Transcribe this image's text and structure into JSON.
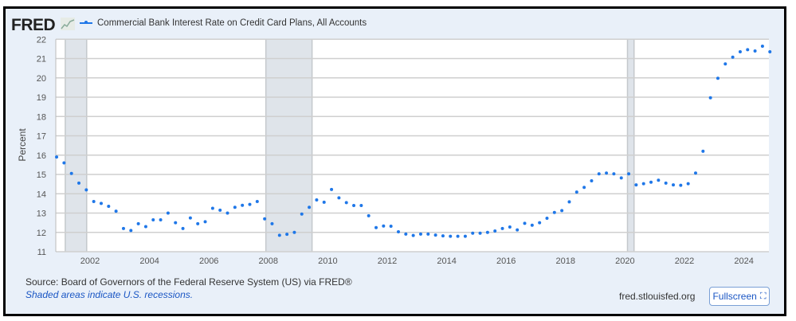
{
  "header": {
    "logo": "FRED",
    "legend_label": "Commercial Bank Interest Rate on Credit Card Plans, All Accounts"
  },
  "footer": {
    "source": "Source: Board of Governors of the Federal Reserve System (US) via FRED®",
    "recession_note": "Shaded areas indicate U.S. recessions.",
    "site": "fred.stlouisfed.org",
    "fullscreen_label": "Fullscreen",
    "fullscreen_icon": "expand-icon"
  },
  "colors": {
    "series": "#1f77e8",
    "recession": "#dfe4ea",
    "background": "#e9f0f9"
  },
  "chart_data": {
    "type": "scatter",
    "title": "Commercial Bank Interest Rate on Credit Card Plans, All Accounts",
    "xlabel": "",
    "ylabel": "Percent",
    "ylim": [
      11,
      22
    ],
    "xlim": [
      2000.833,
      2024.833
    ],
    "yticks": [
      "11",
      "12",
      "13",
      "14",
      "15",
      "16",
      "17",
      "18",
      "19",
      "20",
      "21",
      "22"
    ],
    "xticks": [
      "2002",
      "2004",
      "2006",
      "2008",
      "2010",
      "2012",
      "2014",
      "2016",
      "2018",
      "2020",
      "2022",
      "2024"
    ],
    "grid": true,
    "frequency": "quarterly",
    "x": [
      "2000-11",
      "2001-02",
      "2001-05",
      "2001-08",
      "2001-11",
      "2002-02",
      "2002-05",
      "2002-08",
      "2002-11",
      "2003-02",
      "2003-05",
      "2003-08",
      "2003-11",
      "2004-02",
      "2004-05",
      "2004-08",
      "2004-11",
      "2005-02",
      "2005-05",
      "2005-08",
      "2005-11",
      "2006-02",
      "2006-05",
      "2006-08",
      "2006-11",
      "2007-02",
      "2007-05",
      "2007-08",
      "2007-11",
      "2008-02",
      "2008-05",
      "2008-08",
      "2008-11",
      "2009-02",
      "2009-05",
      "2009-08",
      "2009-11",
      "2010-02",
      "2010-05",
      "2010-08",
      "2010-11",
      "2011-02",
      "2011-05",
      "2011-08",
      "2011-11",
      "2012-02",
      "2012-05",
      "2012-08",
      "2012-11",
      "2013-02",
      "2013-05",
      "2013-08",
      "2013-11",
      "2014-02",
      "2014-05",
      "2014-08",
      "2014-11",
      "2015-02",
      "2015-05",
      "2015-08",
      "2015-11",
      "2016-02",
      "2016-05",
      "2016-08",
      "2016-11",
      "2017-02",
      "2017-05",
      "2017-08",
      "2017-11",
      "2018-02",
      "2018-05",
      "2018-08",
      "2018-11",
      "2019-02",
      "2019-05",
      "2019-08",
      "2019-11",
      "2020-02",
      "2020-05",
      "2020-08",
      "2020-11",
      "2021-02",
      "2021-05",
      "2021-08",
      "2021-11",
      "2022-02",
      "2022-05",
      "2022-08",
      "2022-11",
      "2023-02",
      "2023-05",
      "2023-08",
      "2023-11",
      "2024-02",
      "2024-05",
      "2024-08",
      "2024-11"
    ],
    "series": [
      {
        "name": "Commercial Bank Interest Rate on Credit Card Plans, All Accounts",
        "values": [
          15.9,
          15.6,
          15.05,
          14.55,
          14.2,
          13.6,
          13.5,
          13.35,
          13.1,
          12.2,
          12.1,
          12.45,
          12.3,
          12.65,
          12.65,
          13.0,
          12.5,
          12.2,
          12.75,
          12.45,
          12.55,
          13.25,
          13.15,
          13.0,
          13.3,
          13.4,
          13.45,
          13.6,
          12.7,
          12.45,
          11.85,
          11.9,
          12.0,
          12.95,
          13.3,
          13.68,
          13.56,
          14.22,
          13.79,
          13.54,
          13.39,
          13.39,
          12.86,
          12.25,
          12.33,
          12.32,
          12.03,
          11.91,
          11.84,
          11.91,
          11.91,
          11.86,
          11.82,
          11.8,
          11.8,
          11.8,
          11.96,
          11.96,
          12.0,
          12.07,
          12.2,
          12.28,
          12.13,
          12.47,
          12.37,
          12.5,
          12.73,
          13.03,
          13.13,
          13.58,
          14.09,
          14.33,
          14.67,
          15.03,
          15.07,
          15.03,
          14.82,
          15.03,
          14.46,
          14.52,
          14.6,
          14.7,
          14.55,
          14.46,
          14.44,
          14.52,
          15.07,
          16.2,
          18.97,
          19.98,
          20.72,
          21.07,
          21.35,
          21.46,
          21.39,
          21.64,
          21.35
        ]
      }
    ],
    "recessions": [
      [
        "2001-03",
        "2001-11"
      ],
      [
        "2007-12",
        "2009-06"
      ],
      [
        "2020-02",
        "2020-04"
      ]
    ]
  }
}
